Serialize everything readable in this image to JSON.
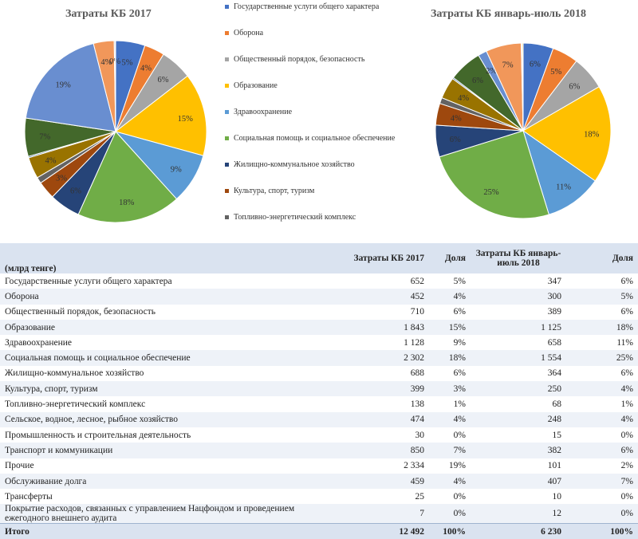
{
  "chart_data": [
    {
      "type": "pie",
      "title": "Затраты КБ 2017",
      "categories": [
        "Государственные услуги общего характера",
        "Оборона",
        "Общественный порядок, безопасность",
        "Образование",
        "Здравоохранение",
        "Социальная помощь и социальное обеспечение",
        "Жилищно-коммунальное хозяйство",
        "Культура, спорт, туризм",
        "Топливно-энергетический комплекс",
        "Сельское, водное, лесное, рыбное хозяйство",
        "Промышленность и строительная деятельность",
        "Транспорт и коммуникации",
        "Прочие",
        "Обслуживание долга",
        "Трансферты",
        "Покрытие расходов, связанных с управлением Нацфондом и проведением ежегодного внешнего аудита"
      ],
      "values": [
        652,
        452,
        710,
        1843,
        1128,
        2302,
        688,
        399,
        138,
        474,
        30,
        850,
        2334,
        459,
        25,
        7
      ],
      "labels": [
        "5%",
        "4%",
        "6%",
        "15%",
        "9%",
        "18%",
        "6%",
        "3%",
        "",
        "4%",
        "",
        "7%",
        "19%",
        "4%",
        "0%",
        ""
      ]
    },
    {
      "type": "pie",
      "title": "Затраты КБ январь-июль 2018",
      "categories": [
        "Государственные услуги общего характера",
        "Оборона",
        "Общественный порядок, безопасность",
        "Образование",
        "Здравоохранение",
        "Социальная помощь и социальное обеспечение",
        "Жилищно-коммунальное хозяйство",
        "Культура, спорт, туризм",
        "Топливно-энергетический комплекс",
        "Сельское, водное, лесное, рыбное хозяйство",
        "Промышленность и строительная деятельность",
        "Транспорт и коммуникации",
        "Прочие",
        "Обслуживание долга",
        "Трансферты",
        "Покрытие расходов, связанных с управлением Нацфондом и проведением ежегодного внешнего аудита"
      ],
      "values": [
        347,
        300,
        389,
        1125,
        658,
        1554,
        364,
        250,
        68,
        248,
        15,
        382,
        101,
        407,
        10,
        12
      ],
      "labels": [
        "6%",
        "5%",
        "6%",
        "18%",
        "11%",
        "25%",
        "6%",
        "4%",
        "",
        "4%",
        "",
        "6%",
        "2%",
        "7%",
        "",
        ""
      ]
    }
  ],
  "colors": [
    "#4472c4",
    "#ed7d31",
    "#a5a5a5",
    "#ffc000",
    "#5b9bd5",
    "#70ad47",
    "#264478",
    "#9e480e",
    "#636363",
    "#997300",
    "#255e91",
    "#43682b",
    "#698ed0",
    "#f1975a",
    "#b7b7b7",
    "#ffcd33"
  ],
  "legend": [
    "Государственные услуги общего характера",
    "Оборона",
    "Общественный порядок, безопасность",
    "Образование",
    "Здравоохранение",
    "Социальная помощь и социальное обеспечение",
    "Жилищно-коммунальное хозяйство",
    "Культура, спорт, туризм",
    "Топливно-энергетический комплекс"
  ],
  "table": {
    "unit": "(млрд тенге)",
    "headers": [
      "Затраты КБ 2017",
      "Доля",
      "Затраты КБ январь-июль 2018",
      "Доля"
    ],
    "rows": [
      [
        "Государственные услуги общего характера",
        "652",
        "5%",
        "347",
        "6%"
      ],
      [
        "Оборона",
        "452",
        "4%",
        "300",
        "5%"
      ],
      [
        "Общественный порядок, безопасность",
        "710",
        "6%",
        "389",
        "6%"
      ],
      [
        "Образование",
        "1 843",
        "15%",
        "1 125",
        "18%"
      ],
      [
        "Здравоохранение",
        "1 128",
        "9%",
        "658",
        "11%"
      ],
      [
        "Социальная помощь и социальное обеспечение",
        "2 302",
        "18%",
        "1 554",
        "25%"
      ],
      [
        "Жилищно-коммунальное хозяйство",
        "688",
        "6%",
        "364",
        "6%"
      ],
      [
        "Культура, спорт, туризм",
        "399",
        "3%",
        "250",
        "4%"
      ],
      [
        "Топливно-энергетический комплекс",
        "138",
        "1%",
        "68",
        "1%"
      ],
      [
        "Сельское, водное, лесное, рыбное хозяйство",
        "474",
        "4%",
        "248",
        "4%"
      ],
      [
        "Промышленность и строительная деятельность",
        "30",
        "0%",
        "15",
        "0%"
      ],
      [
        "Транспорт и коммуникации",
        "850",
        "7%",
        "382",
        "6%"
      ],
      [
        "Прочие",
        "2 334",
        "19%",
        "101",
        "2%"
      ],
      [
        "Обслуживание долга",
        "459",
        "4%",
        "407",
        "7%"
      ],
      [
        "Трансферты",
        "25",
        "0%",
        "10",
        "0%"
      ],
      [
        "Покрытие расходов, связанных с управлением Нацфондом и проведением ежегодного внешнего аудита",
        "7",
        "0%",
        "12",
        "0%"
      ]
    ],
    "total": [
      "Итого",
      "12 492",
      "100%",
      "6 230",
      "100%"
    ]
  }
}
